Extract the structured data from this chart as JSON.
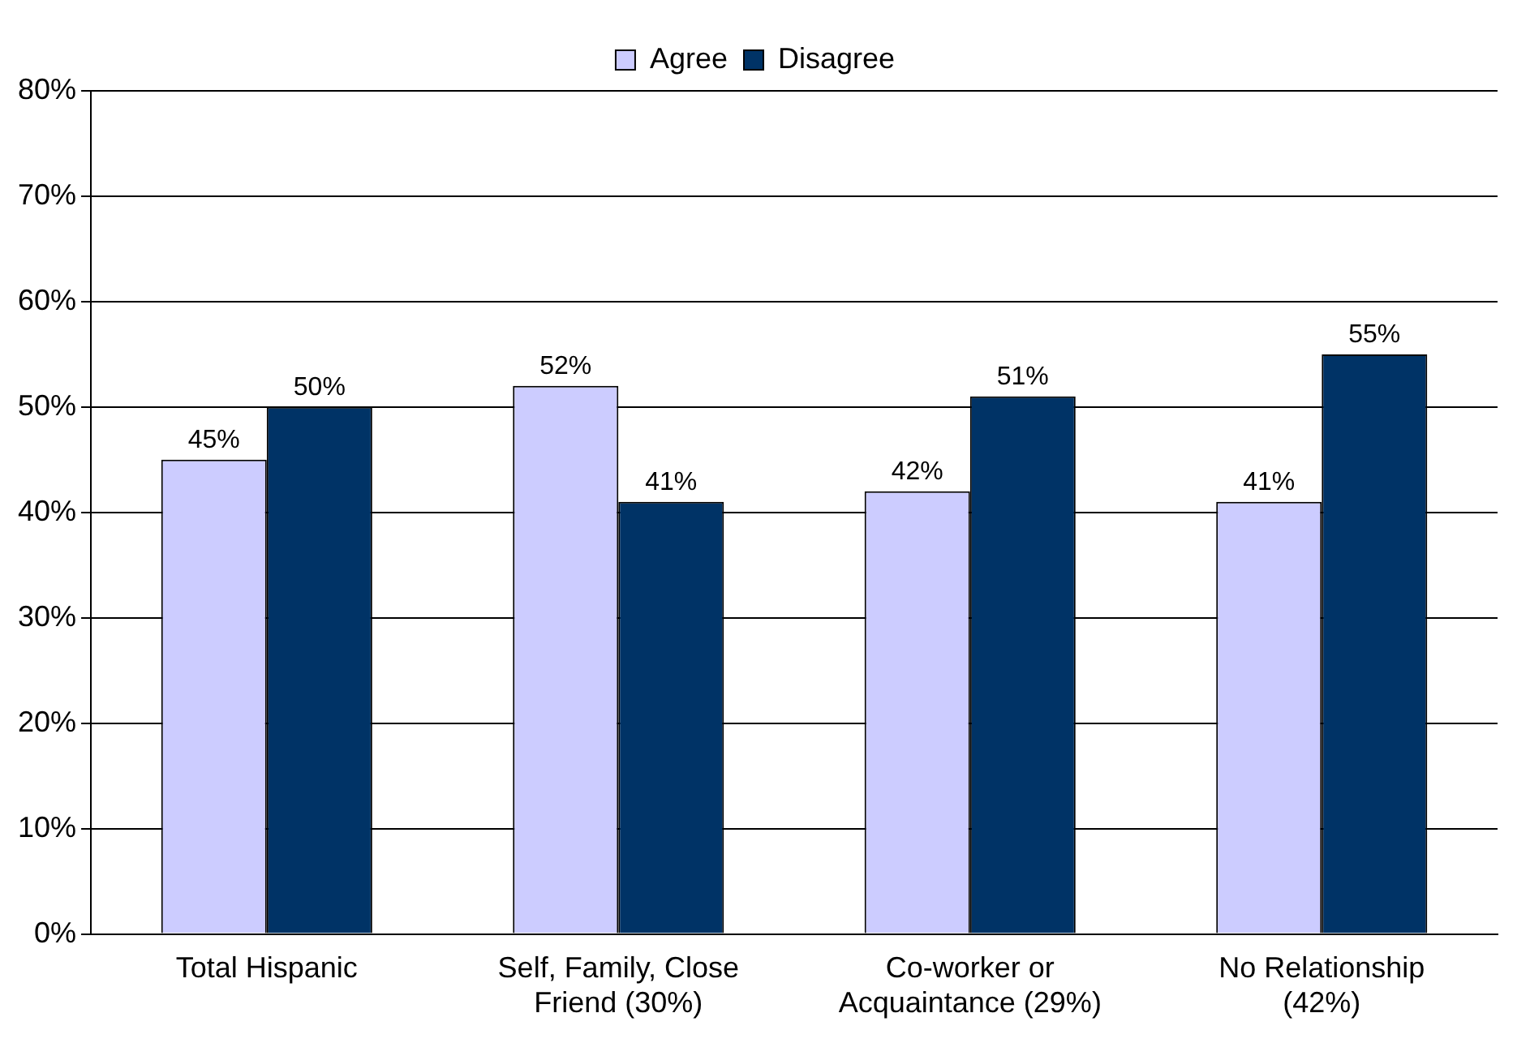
{
  "chart_data": {
    "type": "bar",
    "categories": [
      "Total Hispanic",
      "Self, Family, Close Friend (30%)",
      "Co-worker or Acquaintance (29%)",
      "No Relationship (42%)"
    ],
    "series": [
      {
        "name": "Agree",
        "color": "#ccccff",
        "values": [
          45,
          52,
          42,
          41
        ],
        "value_labels": [
          "45%",
          "52%",
          "42%",
          "41%"
        ]
      },
      {
        "name": "Disagree",
        "color": "#003366",
        "values": [
          50,
          41,
          51,
          55
        ],
        "value_labels": [
          "50%",
          "41%",
          "51%",
          "55%"
        ]
      }
    ],
    "ylim": [
      0,
      80
    ],
    "yticks": [
      {
        "value": 0,
        "label": "0%"
      },
      {
        "value": 10,
        "label": "10%"
      },
      {
        "value": 20,
        "label": "20%"
      },
      {
        "value": 30,
        "label": "30%"
      },
      {
        "value": 40,
        "label": "40%"
      },
      {
        "value": 50,
        "label": "50%"
      },
      {
        "value": 60,
        "label": "60%"
      },
      {
        "value": 70,
        "label": "70%"
      },
      {
        "value": 80,
        "label": "80%"
      }
    ],
    "grid": "y",
    "legend": "top"
  }
}
